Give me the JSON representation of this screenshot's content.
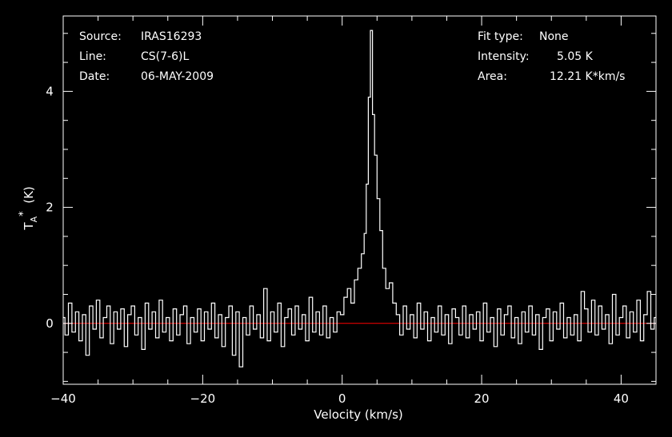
{
  "colors": {
    "background": "#000000",
    "foreground": "#ffffff",
    "baseline": "#ff0000"
  },
  "info_left": [
    {
      "key": "Source:",
      "value": "IRAS16293"
    },
    {
      "key": "Line:",
      "value": "CS(7-6)L"
    },
    {
      "key": "Date:",
      "value": "06-MAY-2009"
    }
  ],
  "info_right": [
    {
      "key": "Fit type:",
      "value": "None"
    },
    {
      "key": "Intensity:",
      "value": "5.05 K"
    },
    {
      "key": "Area:",
      "value": "12.21 K*km/s"
    }
  ],
  "chart_data": {
    "type": "line",
    "xlabel": "Velocity (km/s)",
    "ylabel_main": "T",
    "ylabel_sub": "A",
    "ylabel_sup": "*",
    "ylabel_unit": "(K)",
    "xlim": [
      -40,
      45
    ],
    "ylim": [
      -1.05,
      5.3
    ],
    "xticks": [
      -40,
      -20,
      0,
      20,
      40
    ],
    "yticks": [
      0,
      2,
      4
    ],
    "baseline": 0,
    "series": [
      {
        "x": [
          -40,
          -39.5,
          -39,
          -38.5,
          -38,
          -37.5,
          -37,
          -36.5,
          -36,
          -35.5,
          -35,
          -34.5,
          -34,
          -33.5,
          -33,
          -32.5,
          -32,
          -31.5,
          -31,
          -30.5,
          -30,
          -29.5,
          -29,
          -28.5,
          -28,
          -27.5,
          -27,
          -26.5,
          -26,
          -25.5,
          -25,
          -24.5,
          -24,
          -23.5,
          -23,
          -22.5,
          -22,
          -21.5,
          -21,
          -20.5,
          -20,
          -19.5,
          -19,
          -18.5,
          -18,
          -17.5,
          -17,
          -16.5,
          -16,
          -15.5,
          -15,
          -14.5,
          -14,
          -13.5,
          -13,
          -12.5,
          -12,
          -11.5,
          -11,
          -10.5,
          -10,
          -9.5,
          -9,
          -8.5,
          -8,
          -7.5,
          -7,
          -6.5,
          -6,
          -5.5,
          -5,
          -4.5,
          -4,
          -3.5,
          -3,
          -2.5,
          -2,
          -1.5,
          -1,
          -0.5,
          0,
          0.5,
          1,
          1.5,
          2,
          2.5,
          3,
          3.3,
          3.6,
          3.9,
          4.2,
          4.5,
          4.8,
          5.2,
          5.6,
          6,
          6.5,
          7,
          7.5,
          8,
          8.5,
          9,
          9.5,
          10,
          10.5,
          11,
          11.5,
          12,
          12.5,
          13,
          13.5,
          14,
          14.5,
          15,
          15.5,
          16,
          16.5,
          17,
          17.5,
          18,
          18.5,
          19,
          19.5,
          20,
          20.5,
          21,
          21.5,
          22,
          22.5,
          23,
          23.5,
          24,
          24.5,
          25,
          25.5,
          26,
          26.5,
          27,
          27.5,
          28,
          28.5,
          29,
          29.5,
          30,
          30.5,
          31,
          31.5,
          32,
          32.5,
          33,
          33.5,
          34,
          34.5,
          35,
          35.5,
          36,
          36.5,
          37,
          37.5,
          38,
          38.5,
          39,
          39.5,
          40,
          40.5,
          41,
          41.5,
          42,
          42.5,
          43,
          43.5,
          44,
          44.5,
          45
        ],
        "values": [
          0.1,
          -0.2,
          0.35,
          -0.15,
          0.2,
          -0.3,
          0.15,
          -0.55,
          0.3,
          -0.1,
          0.4,
          -0.25,
          0.1,
          0.3,
          -0.35,
          0.2,
          -0.1,
          0.25,
          -0.4,
          0.15,
          0.3,
          -0.2,
          0.1,
          -0.45,
          0.35,
          -0.1,
          0.2,
          -0.25,
          0.4,
          -0.15,
          0.1,
          -0.3,
          0.25,
          -0.2,
          0.15,
          0.3,
          -0.35,
          0.1,
          -0.15,
          0.25,
          -0.3,
          0.2,
          -0.1,
          0.35,
          -0.25,
          0.15,
          -0.4,
          0.1,
          0.3,
          -0.55,
          0.2,
          -0.75,
          0.1,
          -0.2,
          0.3,
          -0.1,
          0.15,
          -0.25,
          0.6,
          -0.3,
          0.2,
          -0.15,
          0.35,
          -0.4,
          0.1,
          0.25,
          -0.2,
          0.3,
          -0.1,
          0.15,
          -0.3,
          0.45,
          -0.15,
          0.2,
          -0.2,
          0.3,
          -0.25,
          0.1,
          -0.15,
          0.2,
          0.15,
          0.45,
          0.6,
          0.35,
          0.75,
          0.95,
          1.2,
          1.55,
          2.4,
          3.9,
          5.05,
          3.6,
          2.9,
          2.15,
          1.6,
          0.95,
          0.6,
          0.7,
          0.35,
          0.15,
          -0.2,
          0.3,
          -0.1,
          0.15,
          -0.25,
          0.35,
          -0.1,
          0.2,
          -0.3,
          0.1,
          -0.15,
          0.3,
          -0.2,
          0.15,
          -0.35,
          0.25,
          0.1,
          -0.2,
          0.3,
          -0.25,
          0.15,
          -0.1,
          0.2,
          -0.3,
          0.35,
          -0.15,
          0.1,
          -0.4,
          0.25,
          -0.2,
          0.15,
          0.3,
          -0.25,
          0.1,
          -0.35,
          0.2,
          -0.15,
          0.3,
          -0.2,
          0.15,
          -0.45,
          0.1,
          0.25,
          -0.3,
          0.2,
          -0.1,
          0.35,
          -0.25,
          0.1,
          -0.2,
          0.15,
          -0.3,
          0.55,
          0.25,
          -0.15,
          0.4,
          -0.2,
          0.3,
          -0.1,
          0.15,
          -0.35,
          0.5,
          -0.2,
          0.1,
          0.3,
          -0.25,
          0.2,
          -0.15,
          0.4,
          -0.3,
          0.15,
          0.55,
          -0.1,
          0.1
        ]
      }
    ]
  }
}
